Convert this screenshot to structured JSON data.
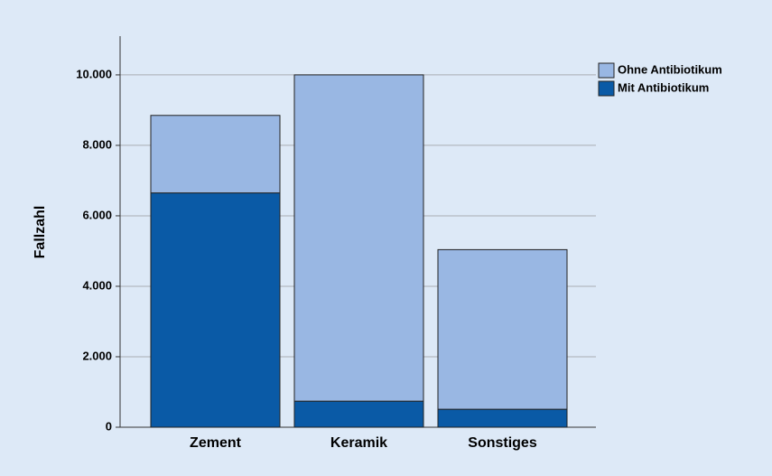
{
  "chart_data": {
    "type": "stacked_bar",
    "y_label": "Fallzahl",
    "categories": [
      "Zement",
      "Keramik",
      "Sonstiges"
    ],
    "series": [
      {
        "name": "Mit Antibiotikum",
        "color": "#0a5aa6",
        "values": [
          6650,
          740,
          510
        ]
      },
      {
        "name": "Ohne Antibiotikum",
        "color": "#99b7e3",
        "values": [
          2200,
          9260,
          4530
        ]
      }
    ],
    "ylim": [
      0,
      11100
    ],
    "yticks": [
      0,
      {
        "value": 2000,
        "label": "2.000"
      },
      {
        "value": 4000,
        "label": "4.000"
      },
      {
        "value": 6000,
        "label": "6.000"
      },
      {
        "value": 8000,
        "label": "8.000"
      },
      {
        "value": 10000,
        "label": "10.000"
      }
    ],
    "grid": true,
    "legend": "top-right"
  }
}
